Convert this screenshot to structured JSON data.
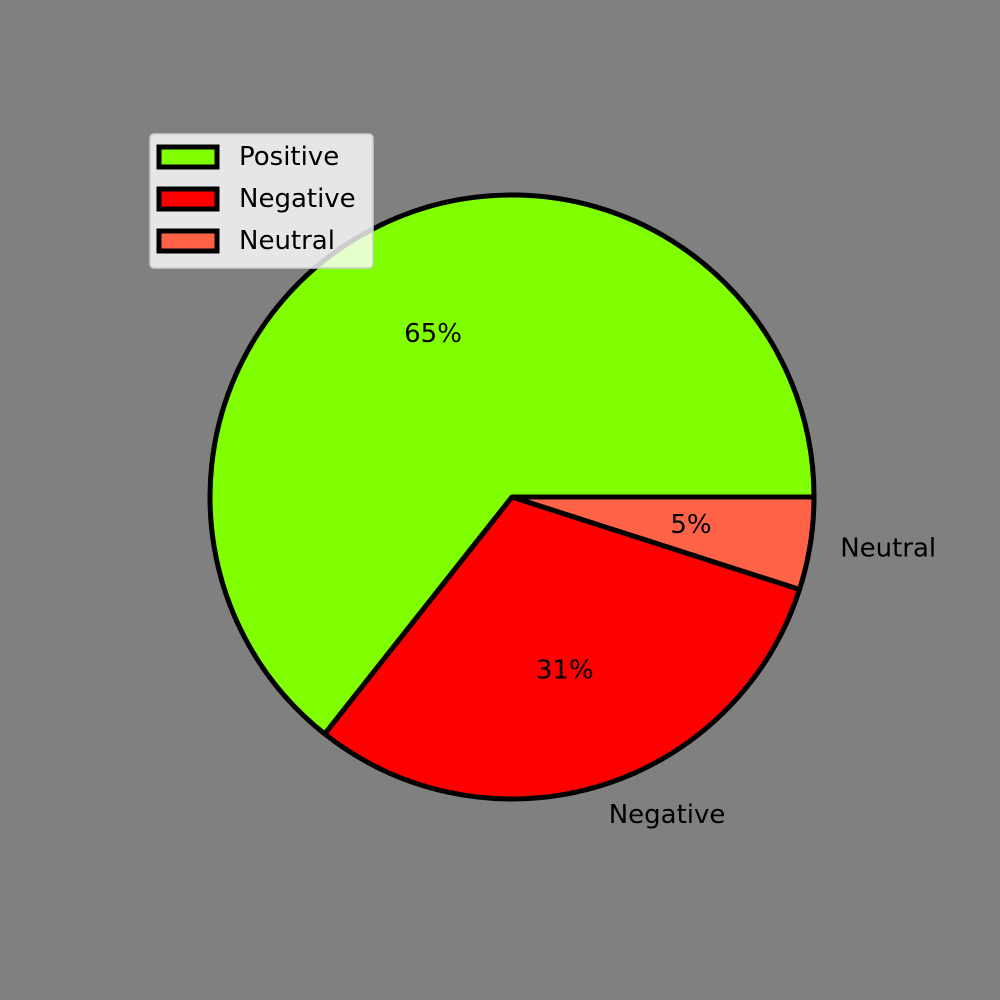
{
  "chart_data": {
    "type": "pie",
    "title": "",
    "categories": [
      "Positive",
      "Negative",
      "Neutral"
    ],
    "values": [
      65,
      31,
      5
    ],
    "labels_shown_on_slices": [
      "65%",
      "31%",
      "5%"
    ],
    "outer_labels": [
      "",
      "Negative",
      "Neutral"
    ],
    "colors": [
      "#7fff00",
      "#ff0000",
      "#ff6347"
    ],
    "edge_color": "#000000",
    "background_color": "#808080",
    "start_angle_degrees": 0,
    "direction": "counterclockwise",
    "legend": {
      "placement": "top-left",
      "entries": [
        "Positive",
        "Negative",
        "Neutral"
      ]
    }
  }
}
